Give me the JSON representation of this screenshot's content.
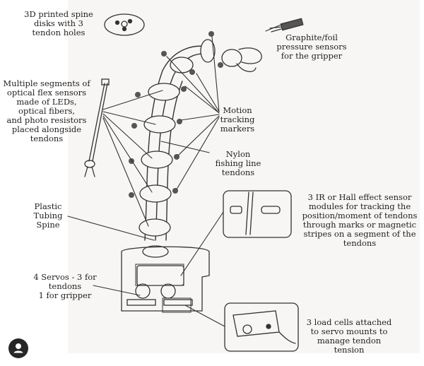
{
  "annotations": {
    "spine_disks": "3D printed spine\ndisks with 3\ntendon holes",
    "pressure_sensors": "Graphite/foil\npressure sensors\nfor the gripper",
    "flex_sensors": "Multiple segments of\noptical flex sensors\nmade of LEDs,\noptical fibers,\nand photo resistors\nplaced alongside\ntendons",
    "motion_markers": "Motion\ntracking\nmarkers",
    "nylon_tendons": "Nylon\nfishing line\ntendons",
    "tubing_spine": "Plastic\nTubing\nSpine",
    "ir_hall_modules": "3 IR or Hall effect sensor\nmodules for tracking the\nposition/moment of tendons\nthrough marks or magnetic\nstripes on a segment of the\ntendons",
    "servos": "4 Servos - 3 for\ntendons\n1 for gripper",
    "load_cells": "3 load cells attached\nto servo mounts to\nmanage tendon\ntension"
  },
  "ui": {
    "avatar_icon": "user-avatar-icon"
  }
}
